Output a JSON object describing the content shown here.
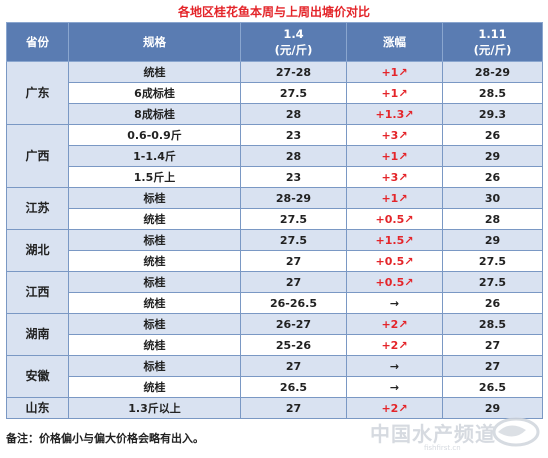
{
  "title": "各地区桂花鱼本周与上周出塘价对比",
  "header": {
    "province": "省份",
    "spec": "规格",
    "date1": "1.4",
    "unit1": "(元/斤)",
    "change": "涨幅",
    "date2": "1.11",
    "unit2": "(元/斤)"
  },
  "rows": [
    {
      "province": "广东",
      "rowspan": 3,
      "spec": "统桂",
      "p1": "27-28",
      "change": "+1↗",
      "trend": "up",
      "p2": "28-29"
    },
    {
      "spec": "6成标桂",
      "p1": "27.5",
      "change": "+1↗",
      "trend": "up",
      "p2": "28.5"
    },
    {
      "spec": "8成标桂",
      "p1": "28",
      "change": "+1.3↗",
      "trend": "up",
      "p2": "29.3"
    },
    {
      "province": "广西",
      "rowspan": 3,
      "spec": "0.6-0.9斤",
      "p1": "23",
      "change": "+3↗",
      "trend": "up",
      "p2": "26"
    },
    {
      "spec": "1-1.4斤",
      "p1": "28",
      "change": "+1↗",
      "trend": "up",
      "p2": "29"
    },
    {
      "spec": "1.5斤上",
      "p1": "23",
      "change": "+3↗",
      "trend": "up",
      "p2": "26"
    },
    {
      "province": "江苏",
      "rowspan": 2,
      "spec": "标桂",
      "p1": "28-29",
      "change": "+1↗",
      "trend": "up",
      "p2": "30"
    },
    {
      "spec": "统桂",
      "p1": "27.5",
      "change": "+0.5↗",
      "trend": "up",
      "p2": "28"
    },
    {
      "province": "湖北",
      "rowspan": 2,
      "spec": "标桂",
      "p1": "27.5",
      "change": "+1.5↗",
      "trend": "up",
      "p2": "29"
    },
    {
      "spec": "统桂",
      "p1": "27",
      "change": "+0.5↗",
      "trend": "up",
      "p2": "27.5"
    },
    {
      "province": "江西",
      "rowspan": 2,
      "spec": "标桂",
      "p1": "27",
      "change": "+0.5↗",
      "trend": "up",
      "p2": "27.5"
    },
    {
      "spec": "统桂",
      "p1": "26-26.5",
      "change": "→",
      "trend": "flat",
      "p2": "26"
    },
    {
      "province": "湖南",
      "rowspan": 2,
      "spec": "标桂",
      "p1": "26-27",
      "change": "+2↗",
      "trend": "up",
      "p2": "28.5"
    },
    {
      "spec": "统桂",
      "p1": "25-26",
      "change": "+2↗",
      "trend": "up",
      "p2": "27"
    },
    {
      "province": "安徽",
      "rowspan": 2,
      "spec": "标桂",
      "p1": "27",
      "change": "→",
      "trend": "flat",
      "p2": "27"
    },
    {
      "spec": "统桂",
      "p1": "26.5",
      "change": "→",
      "trend": "flat",
      "p2": "26.5"
    },
    {
      "province": "山东",
      "rowspan": 1,
      "spec": "1.3斤以上",
      "p1": "27",
      "change": "+2↗",
      "trend": "up",
      "p2": "29"
    }
  ],
  "note": "备注：价格偏小与偏大价格会略有出入。",
  "watermark": {
    "text": "中国水产频道",
    "url": "fishfirst.cn"
  },
  "colors": {
    "header_bg": "#5a7cb2",
    "band": "#d9e2f1",
    "border": "#7a98c4",
    "up": "#e4252a",
    "title": "#e4252a"
  }
}
